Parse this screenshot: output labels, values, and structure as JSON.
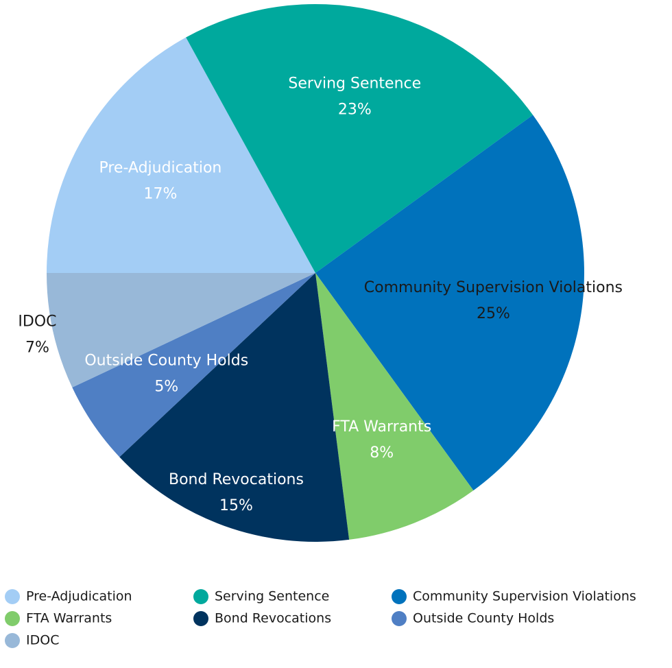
{
  "chart_data": {
    "type": "pie",
    "categories": [
      "Pre-Adjudication",
      "Serving Sentence",
      "Community Supervision Violations",
      "FTA Warrants",
      "Bond Revocations",
      "Outside County Holds",
      "IDOC"
    ],
    "values": [
      17,
      23,
      25,
      8,
      15,
      5,
      7
    ],
    "value_labels": [
      "17%",
      "23%",
      "25%",
      "8%",
      "15%",
      "5%",
      "7%"
    ],
    "colors": [
      "#a3cdf5",
      "#00a99d",
      "#0072bc",
      "#80cc6b",
      "#00335e",
      "#4f7fc4",
      "#98b8d8"
    ],
    "label_colors": [
      "#ffffff",
      "#ffffff",
      "#1a1a1a",
      "#ffffff",
      "#ffffff",
      "#ffffff",
      "#1a1a1a"
    ],
    "legend": "bottom"
  }
}
